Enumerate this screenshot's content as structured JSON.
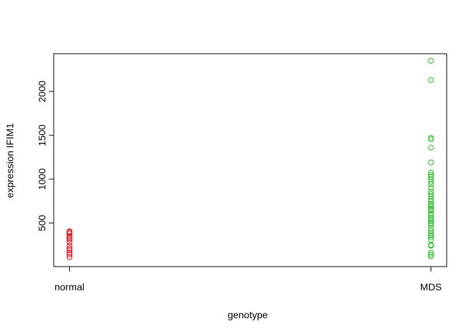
{
  "chart_data": {
    "type": "scatter",
    "title": "",
    "xlabel": "genotype",
    "ylabel": "expression IFIM1",
    "categories": [
      "normal",
      "MDS"
    ],
    "x_ticks": [
      "normal",
      "MDS"
    ],
    "y_ticks": [
      500,
      1000,
      1500,
      2000
    ],
    "ylim": [
      3,
      2430
    ],
    "grid": false,
    "legend": "none",
    "series": [
      {
        "category": "normal",
        "color": "#e8000b",
        "values": [
          110,
          140,
          160,
          190,
          210,
          240,
          280,
          310,
          330,
          350,
          380,
          395,
          405
        ]
      },
      {
        "category": "MDS",
        "color": "#1fbf1f",
        "values": [
          2350,
          2130,
          1470,
          1455,
          1360,
          1190,
          1075,
          1050,
          1030,
          1000,
          970,
          940,
          900,
          860,
          830,
          800,
          770,
          750,
          720,
          700,
          680,
          655,
          640,
          610,
          590,
          560,
          540,
          520,
          500,
          480,
          440,
          410,
          380,
          360,
          340,
          310,
          250,
          240,
          160,
          140,
          120
        ]
      }
    ]
  }
}
